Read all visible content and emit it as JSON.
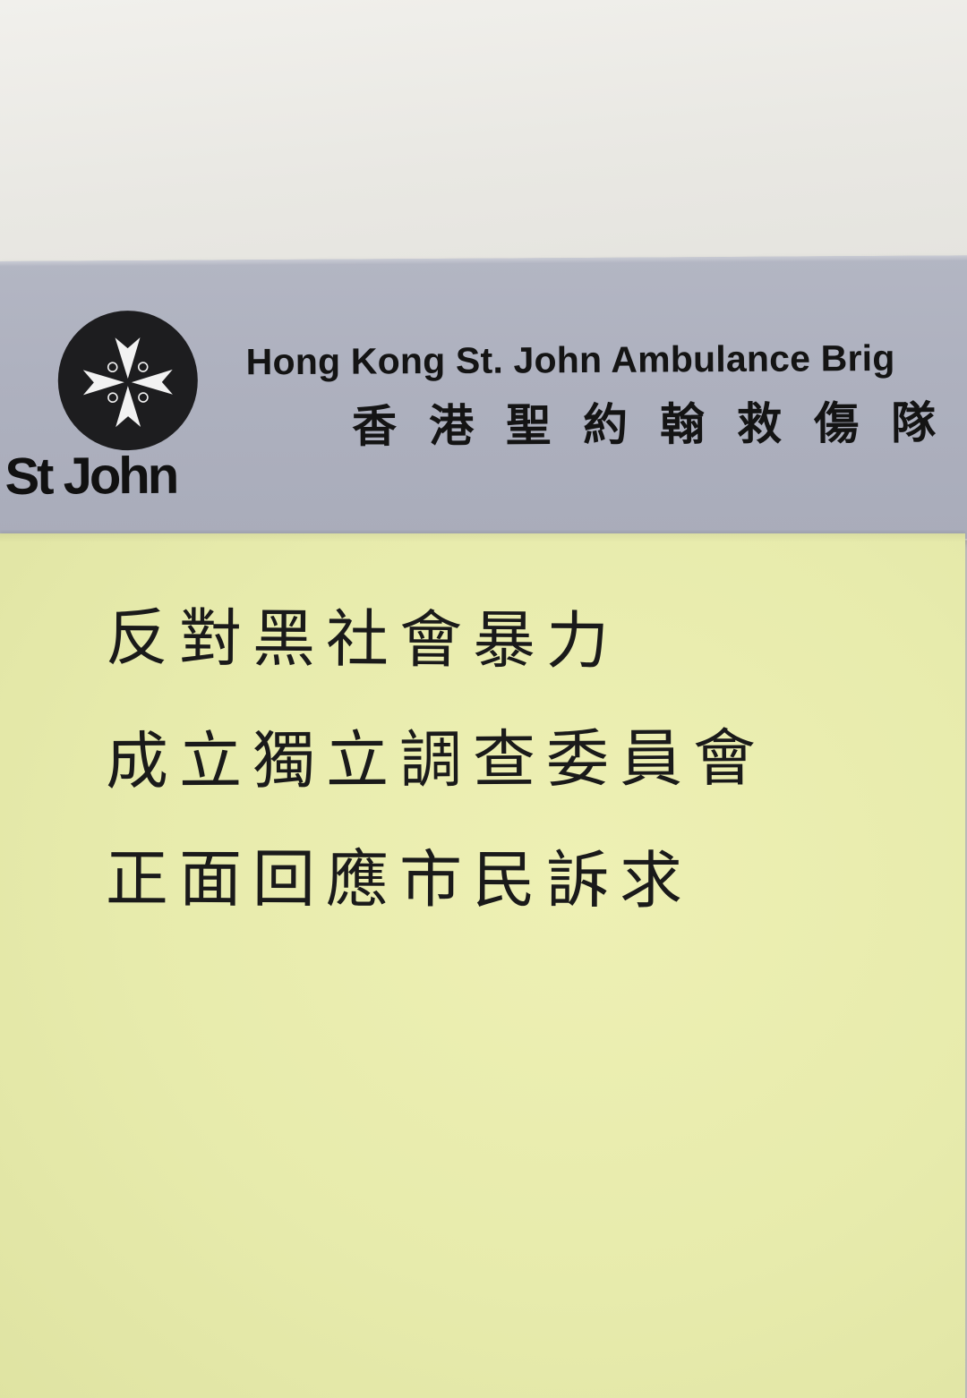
{
  "banner": {
    "logo_wordmark": "St John",
    "org_name_en": "Hong Kong St. John Ambulance Brig",
    "org_name_zh": "香港聖約翰救傷隊"
  },
  "note": {
    "lines": [
      "反對黑社會暴力",
      "成立獨立調查委員會",
      "正面回應市民訴求"
    ]
  },
  "colors": {
    "paper": "#ecebe6",
    "banner_silver": "#b0b3c1",
    "sticky_note_yellow": "#e8ecad",
    "ink": "#1a1a1a",
    "logo_black": "#1d1d1f"
  },
  "icons": {
    "logo_emblem": "maltese-cross-icon"
  }
}
